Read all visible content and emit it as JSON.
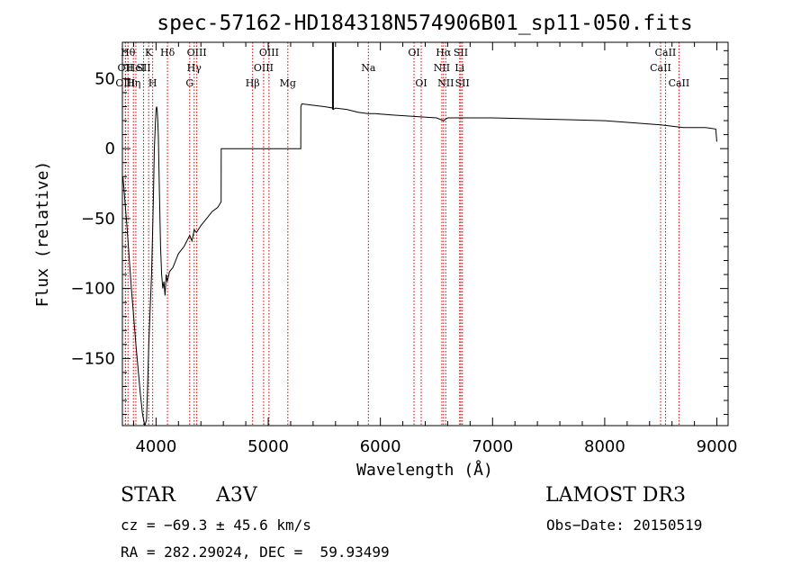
{
  "chart_data": {
    "type": "line",
    "title": "spec-57162-HD184318N574906B01_sp11-050.fits",
    "xlabel": "Wavelength (Å)",
    "ylabel": "Flux (relative)",
    "xlim": [
      3700,
      9100
    ],
    "ylim": [
      -198,
      76
    ],
    "xticks": [
      4000,
      5000,
      6000,
      7000,
      8000,
      9000
    ],
    "yticks": [
      -150,
      -100,
      -50,
      0,
      50
    ],
    "xtick_labels": [
      "4000",
      "5000",
      "6000",
      "7000",
      "8000",
      "9000"
    ],
    "ytick_labels": [
      "−150",
      "−100",
      "−50",
      "0",
      "50"
    ],
    "line_color": "#000000",
    "marker_color": "#cc0000",
    "series": [
      {
        "name": "flux",
        "x": [
          3705,
          3740,
          3780,
          3820,
          3860,
          3880,
          3900,
          3915,
          3925,
          3935,
          3960,
          3975,
          3985,
          3995,
          4000,
          4005,
          4010,
          4015,
          4020,
          4025,
          4030,
          4040,
          4050,
          4060,
          4070,
          4080,
          4090,
          4100,
          4120,
          4150,
          4200,
          4250,
          4300,
          4320,
          4340,
          4360,
          4400,
          4450,
          4500,
          4550,
          4580,
          4581,
          5000,
          5290,
          5291,
          5300,
          5400,
          5500,
          5580,
          5581,
          5600,
          5700,
          5800,
          5890,
          5950,
          6100,
          6300,
          6500,
          6563,
          6600,
          7000,
          7500,
          8000,
          8500,
          8600,
          8700,
          8900,
          8990,
          9000
        ],
        "y": [
          -20,
          -55,
          -100,
          -140,
          -175,
          -190,
          -198,
          -194,
          -170,
          -140,
          -90,
          -40,
          0,
          20,
          28,
          30,
          28,
          20,
          10,
          -10,
          -30,
          -70,
          -90,
          -100,
          -95,
          -105,
          -90,
          -95,
          -88,
          -85,
          -75,
          -70,
          -62,
          -66,
          -58,
          -60,
          -55,
          -50,
          -45,
          -42,
          -38,
          0,
          0,
          0,
          30,
          32,
          31,
          30,
          29,
          28,
          29,
          28,
          26,
          25,
          25,
          24,
          23,
          22,
          20,
          22,
          22,
          21,
          20,
          17,
          16,
          15,
          15,
          14,
          5
        ]
      }
    ],
    "lines": [
      {
        "x": 3750,
        "label": "Hθ",
        "row": 0
      },
      {
        "x": 3727,
        "label": "OII",
        "row": 1
      },
      {
        "x": 3727,
        "label": "OIII",
        "row": 2
      },
      {
        "x": 3798,
        "label": "Hη",
        "row": 2
      },
      {
        "x": 3820,
        "label": "HeI",
        "row": 1
      },
      {
        "x": 3889,
        "label": "SII",
        "row": 1
      },
      {
        "x": 3934,
        "label": "K",
        "row": 0
      },
      {
        "x": 3970,
        "label": "H",
        "row": 2
      },
      {
        "x": 4102,
        "label": "Hδ",
        "row": 0
      },
      {
        "x": 4300,
        "label": "G",
        "row": 2
      },
      {
        "x": 4340,
        "label": "Hγ",
        "row": 1
      },
      {
        "x": 4363,
        "label": "OIII",
        "row": 0
      },
      {
        "x": 4861,
        "label": "Hβ",
        "row": 2
      },
      {
        "x": 4959,
        "label": "OIII",
        "row": 1
      },
      {
        "x": 5007,
        "label": "OIII",
        "row": 0
      },
      {
        "x": 5175,
        "label": "Mg",
        "row": 2
      },
      {
        "x": 5893,
        "label": "Na",
        "row": 1
      },
      {
        "x": 6300,
        "label": "OI",
        "row": 0
      },
      {
        "x": 6364,
        "label": "OI",
        "row": 2
      },
      {
        "x": 6548,
        "label": "NII",
        "row": 1
      },
      {
        "x": 6563,
        "label": "Hα",
        "row": 0
      },
      {
        "x": 6583,
        "label": "NII",
        "row": 2
      },
      {
        "x": 6707,
        "label": "Li",
        "row": 1
      },
      {
        "x": 6717,
        "label": "SII",
        "row": 0
      },
      {
        "x": 6731,
        "label": "SII",
        "row": 2
      },
      {
        "x": 8498,
        "label": "CaII",
        "row": 1
      },
      {
        "x": 8542,
        "label": "CaII",
        "row": 0
      },
      {
        "x": 8662,
        "label": "CaII",
        "row": 2
      }
    ],
    "spike_x": 5577
  },
  "info": {
    "class_label": "STAR",
    "subclass": "A3V",
    "survey": "LAMOST DR3",
    "cz": "cz = −69.3 ± 45.6 km/s",
    "obs_date": "Obs−Date: 20150519",
    "radec": "RA = 282.29024, DEC =  59.93499"
  }
}
